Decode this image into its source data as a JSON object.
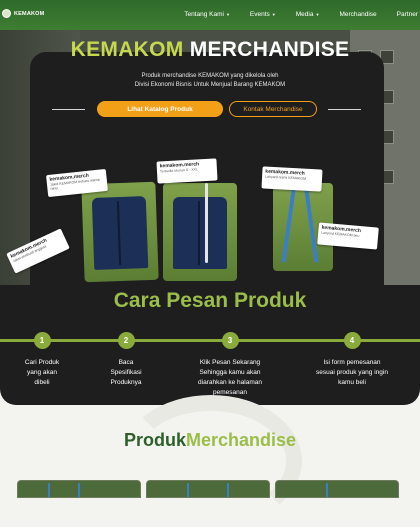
{
  "nav": {
    "brand": "KEMAKOM",
    "items": [
      {
        "label": "Tentang Kami",
        "dropdown": true
      },
      {
        "label": "Events",
        "dropdown": true
      },
      {
        "label": "Media",
        "dropdown": true
      },
      {
        "label": "Merchandise",
        "dropdown": false
      },
      {
        "label": "Partner",
        "dropdown": false
      }
    ]
  },
  "hero": {
    "title_highlight": "KEMAKOM",
    "title_rest": "MERCHANDISE",
    "subtitle_line1": "Produk merchandise KEMAKOM yang dikelola oleh",
    "subtitle_line2": "Divisi Ekonomi Bisnis Untuk Menjual Barang KEMAKOM",
    "btn_catalog": "Lihat Katalog Produk",
    "btn_contact": "Kontak  Merchandise",
    "tags": [
      {
        "handle": "kemakom.merch",
        "text": "Jaket KEMAKOM terbaru warna navy"
      },
      {
        "handle": "kemakom.merch",
        "text": "Tersedia ukuran S - XXL"
      },
      {
        "handle": "kemakom.merch",
        "text": "Lanyard resmi KEMAKOM"
      },
      {
        "handle": "kemakom.merch",
        "text": "Lanyard KEMAKOM biru"
      },
      {
        "handle": "kemakom.merch",
        "text": "Jaket eksklusif anggota"
      }
    ]
  },
  "steps": {
    "title": "Cara Pesan Produk",
    "items": [
      {
        "num": "1",
        "line1": "Cari Produk",
        "line2": "yang akan",
        "line3": "dibeli",
        "line4": ""
      },
      {
        "num": "2",
        "line1": "Baca",
        "line2": "Spesifikasi",
        "line3": "Produknya",
        "line4": ""
      },
      {
        "num": "3",
        "line1": "Klik Pesan Sekarang",
        "line2": "Sehingga kamu akan",
        "line3": "diarahkan ke halaman",
        "line4": "pemesanan"
      },
      {
        "num": "4",
        "line1": "Isi form pemesanan",
        "line2": "sesuai produk yang ingin",
        "line3": "kamu beli",
        "line4": ""
      }
    ]
  },
  "produk": {
    "title_part1": "Produk",
    "title_part2": "Merchandise"
  },
  "colors": {
    "primary_green": "#3f7d33",
    "accent_lime": "#c5d84e",
    "accent_orange": "#f2a018",
    "dark": "#1e1e1e"
  }
}
